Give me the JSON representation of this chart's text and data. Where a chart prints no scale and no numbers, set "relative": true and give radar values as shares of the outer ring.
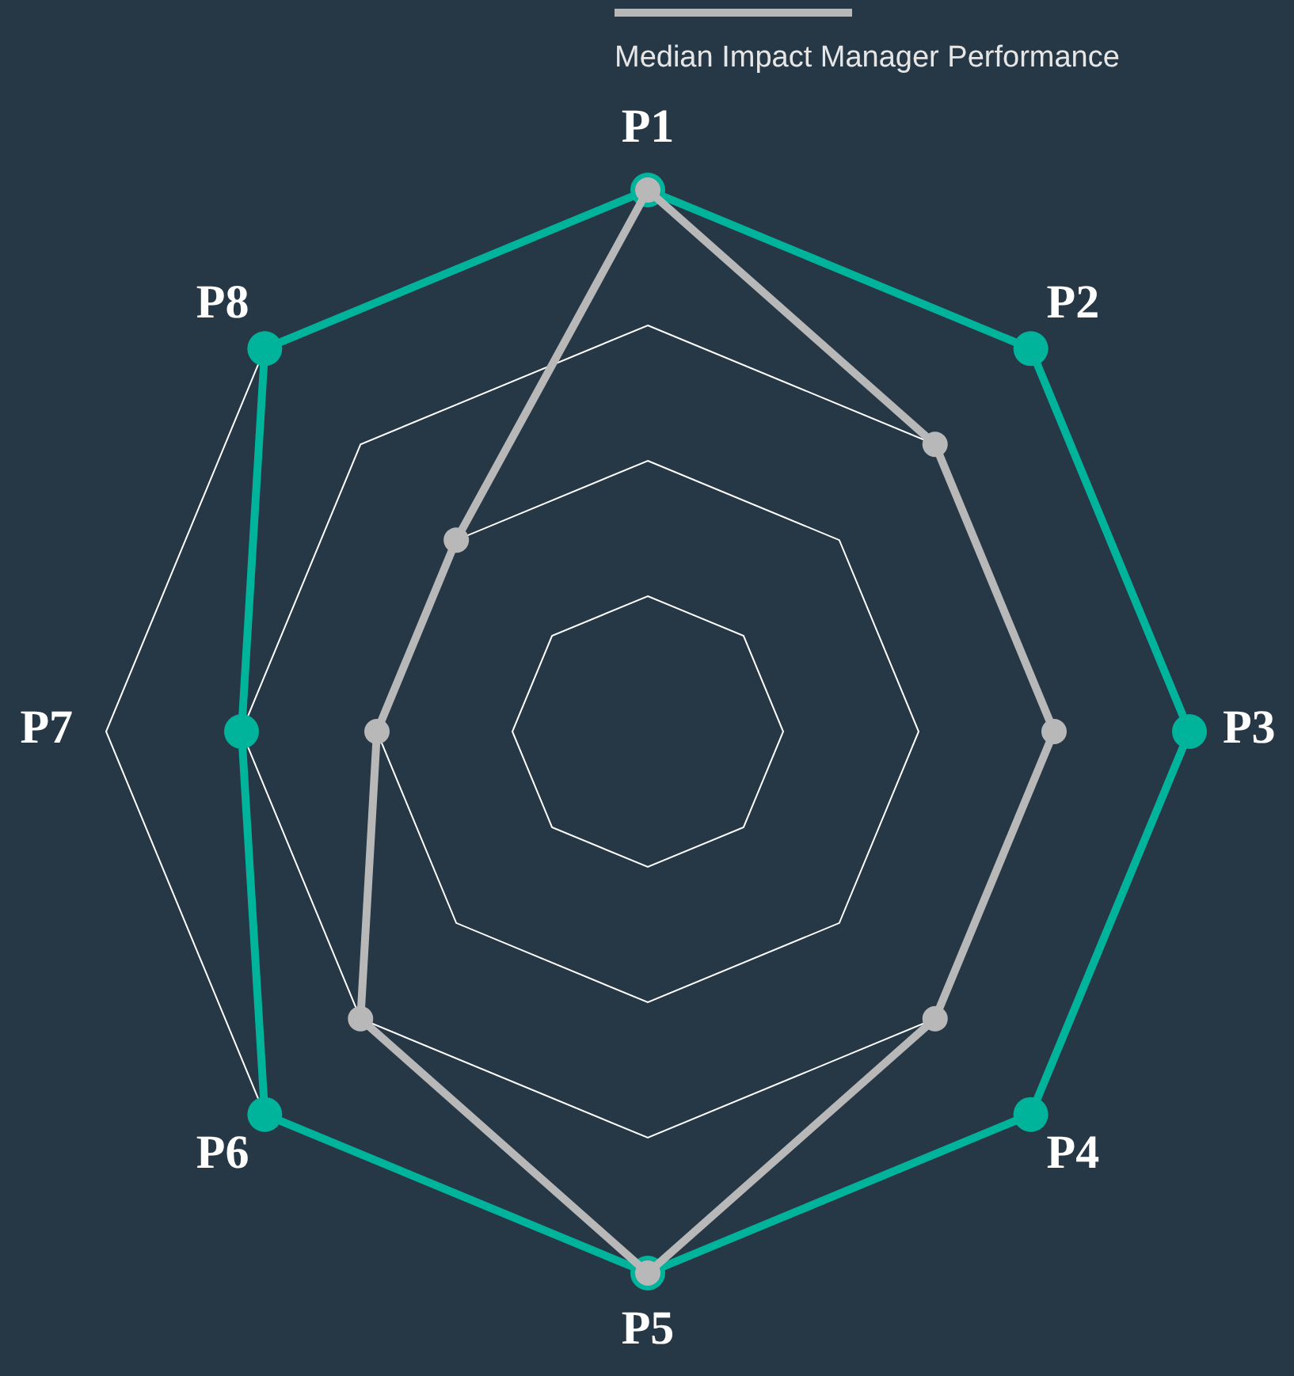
{
  "chart_data": {
    "type": "radar",
    "relative": true,
    "grid": true,
    "legend": "top",
    "marker": "circle",
    "categories": [
      "P1",
      "P2",
      "P3",
      "P4",
      "P5",
      "P6",
      "P7",
      "P8"
    ],
    "series": [
      {
        "color": "#00b39b",
        "values": [
          1,
          1,
          1,
          1,
          1,
          1,
          0.75,
          1
        ]
      },
      {
        "name": "Median Impact Manager Performance",
        "color": "#b8b8b8",
        "values": [
          1,
          0.75,
          0.75,
          0.75,
          1,
          0.75,
          0.5,
          0.5
        ]
      }
    ]
  }
}
